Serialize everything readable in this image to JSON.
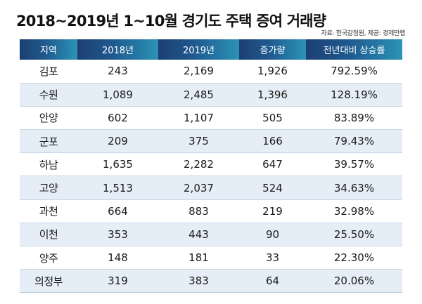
{
  "title": "2018~2019년 1~10월 경기도 주택 증여 거래량",
  "source": "자료: 한국감정원, 제공: 경제만랩",
  "chart_data": {
    "type": "table",
    "columns": [
      "지역",
      "2018년",
      "2019년",
      "증가량",
      "전년대비 상승률"
    ],
    "rows": [
      [
        "김포",
        "243",
        "2,169",
        "1,926",
        "792.59%"
      ],
      [
        "수원",
        "1,089",
        "2,485",
        "1,396",
        "128.19%"
      ],
      [
        "안양",
        "602",
        "1,107",
        "505",
        "83.89%"
      ],
      [
        "군포",
        "209",
        "375",
        "166",
        "79.43%"
      ],
      [
        "하남",
        "1,635",
        "2,282",
        "647",
        "39.57%"
      ],
      [
        "고양",
        "1,513",
        "2,037",
        "524",
        "34.63%"
      ],
      [
        "과천",
        "664",
        "883",
        "219",
        "32.98%"
      ],
      [
        "이천",
        "353",
        "443",
        "90",
        "25.50%"
      ],
      [
        "양주",
        "148",
        "181",
        "33",
        "22.30%"
      ],
      [
        "의정부",
        "319",
        "383",
        "64",
        "20.06%"
      ]
    ]
  },
  "colors": {
    "header_start": "#1d3f73",
    "header_end": "#2b93b6",
    "stripe": "#e5eef6"
  }
}
